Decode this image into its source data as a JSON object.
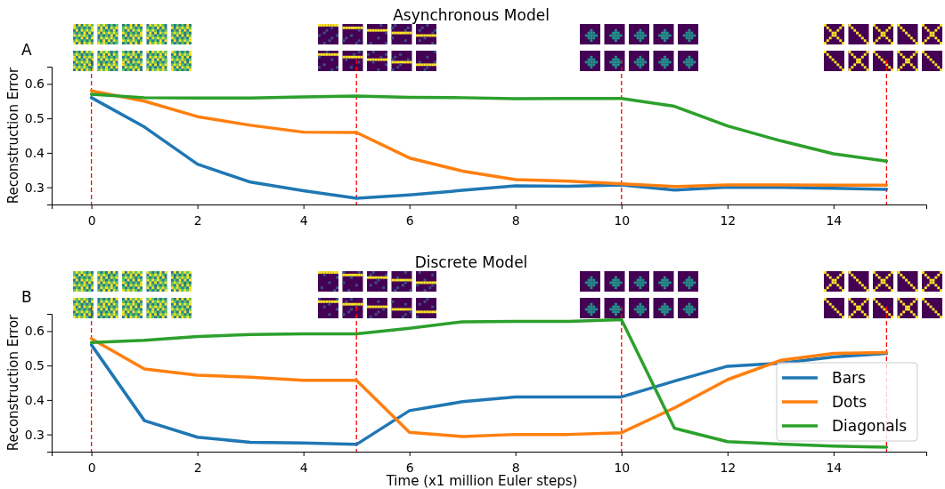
{
  "chart_data": [
    {
      "type": "line",
      "title": "Asynchronous Model",
      "ylabel": "Reconstruction Error",
      "annotations": [
        "A"
      ],
      "x": [
        0,
        1,
        2,
        3,
        4,
        5,
        6,
        7,
        8,
        9,
        10,
        11,
        12,
        13,
        14,
        15
      ],
      "xlim": [
        -0.75,
        15.75
      ],
      "xticks": [
        0,
        2,
        4,
        6,
        8,
        10,
        12,
        14
      ],
      "ylim": [
        0.25,
        0.65
      ],
      "yticks": [
        0.3,
        0.4,
        0.5,
        0.6
      ],
      "legend": false,
      "grid": false,
      "marker": "none",
      "line_style": "solid",
      "ref_lines": [
        {
          "axis": "x",
          "value": 0,
          "color": "#ff0000",
          "line_style": "dashed"
        },
        {
          "axis": "x",
          "value": 5,
          "color": "#ff0000",
          "line_style": "dashed"
        },
        {
          "axis": "x",
          "value": 10,
          "color": "#ff0000",
          "line_style": "dashed"
        },
        {
          "axis": "x",
          "value": 15,
          "color": "#ff0000",
          "line_style": "dashed"
        }
      ],
      "series": [
        {
          "color": "#1f77b4",
          "values": [
            0.56,
            0.475,
            0.367,
            0.315,
            0.29,
            0.268,
            0.278,
            0.291,
            0.304,
            0.303,
            0.307,
            0.292,
            0.3,
            0.3,
            0.297,
            0.294
          ]
        },
        {
          "color": "#ff7f0e",
          "values": [
            0.58,
            0.55,
            0.505,
            0.48,
            0.46,
            0.459,
            0.385,
            0.347,
            0.322,
            0.318,
            0.31,
            0.302,
            0.307,
            0.307,
            0.306,
            0.306
          ]
        },
        {
          "color": "#2ca02c",
          "values": [
            0.57,
            0.56,
            0.559,
            0.559,
            0.562,
            0.565,
            0.561,
            0.56,
            0.557,
            0.558,
            0.558,
            0.535,
            0.478,
            0.435,
            0.397,
            0.376
          ]
        }
      ]
    },
    {
      "type": "line",
      "title": "Discrete Model",
      "xlabel": "Time (x1 million Euler steps)",
      "ylabel": "Reconstruction Error",
      "annotations": [
        "B"
      ],
      "x": [
        0,
        1,
        2,
        3,
        4,
        5,
        6,
        7,
        8,
        9,
        10,
        11,
        12,
        13,
        14,
        15
      ],
      "xlim": [
        -0.75,
        15.75
      ],
      "xticks": [
        0,
        2,
        4,
        6,
        8,
        10,
        12,
        14
      ],
      "ylim": [
        0.25,
        0.65
      ],
      "yticks": [
        0.3,
        0.4,
        0.5,
        0.6
      ],
      "legend": "bottom right",
      "grid": false,
      "marker": "none",
      "line_style": "solid",
      "ref_lines": [
        {
          "axis": "x",
          "value": 0,
          "color": "#ff0000",
          "line_style": "dashed"
        },
        {
          "axis": "x",
          "value": 5,
          "color": "#ff0000",
          "line_style": "dashed"
        },
        {
          "axis": "x",
          "value": 10,
          "color": "#ff0000",
          "line_style": "dashed"
        },
        {
          "axis": "x",
          "value": 15,
          "color": "#ff0000",
          "line_style": "dashed"
        }
      ],
      "series": [
        {
          "name": "Bars",
          "color": "#1f77b4",
          "values": [
            0.56,
            0.34,
            0.292,
            0.277,
            0.275,
            0.271,
            0.369,
            0.395,
            0.409,
            0.409,
            0.409,
            0.455,
            0.498,
            0.507,
            0.525,
            0.535
          ]
        },
        {
          "name": "Dots",
          "color": "#ff7f0e",
          "values": [
            0.578,
            0.49,
            0.472,
            0.466,
            0.457,
            0.457,
            0.306,
            0.294,
            0.3,
            0.3,
            0.305,
            0.377,
            0.459,
            0.515,
            0.535,
            0.538
          ]
        },
        {
          "name": "Diagonals",
          "color": "#2ca02c",
          "values": [
            0.567,
            0.573,
            0.584,
            0.59,
            0.592,
            0.592,
            0.608,
            0.627,
            0.628,
            0.628,
            0.633,
            0.318,
            0.279,
            0.272,
            0.266,
            0.263
          ]
        }
      ]
    }
  ]
}
